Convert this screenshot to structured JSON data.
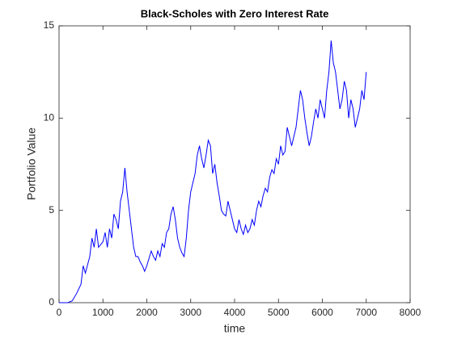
{
  "chart_data": {
    "type": "line",
    "title": "Black-Scholes with Zero Interest Rate",
    "x_label": "time",
    "y_label": "Portfolio Value",
    "xlim": [
      0,
      8000
    ],
    "xticks": [
      0,
      1000,
      2000,
      3000,
      4000,
      5000,
      6000,
      7000,
      8000
    ],
    "ylim": [
      0,
      15
    ],
    "yticks": [
      0,
      5,
      10,
      15
    ],
    "x": [
      0,
      100,
      200,
      300,
      400,
      500,
      550,
      600,
      700,
      750,
      800,
      850,
      900,
      1000,
      1050,
      1100,
      1150,
      1200,
      1250,
      1300,
      1350,
      1400,
      1450,
      1500,
      1550,
      1600,
      1650,
      1700,
      1750,
      1800,
      1850,
      1900,
      1950,
      2000,
      2050,
      2100,
      2150,
      2200,
      2250,
      2300,
      2350,
      2400,
      2450,
      2500,
      2550,
      2600,
      2650,
      2700,
      2750,
      2800,
      2850,
      2900,
      2950,
      3000,
      3050,
      3100,
      3150,
      3200,
      3250,
      3300,
      3350,
      3400,
      3450,
      3500,
      3550,
      3600,
      3650,
      3700,
      3750,
      3800,
      3850,
      3900,
      3950,
      4000,
      4050,
      4100,
      4150,
      4200,
      4250,
      4300,
      4350,
      4400,
      4450,
      4500,
      4550,
      4600,
      4650,
      4700,
      4750,
      4800,
      4850,
      4900,
      4950,
      5000,
      5050,
      5100,
      5150,
      5200,
      5250,
      5300,
      5350,
      5400,
      5450,
      5500,
      5550,
      5600,
      5650,
      5700,
      5750,
      5800,
      5850,
      5900,
      5950,
      6000,
      6050,
      6100,
      6150,
      6200,
      6250,
      6300,
      6350,
      6400,
      6450,
      6500,
      6550,
      6600,
      6650,
      6700,
      6750,
      6800,
      6850,
      6900,
      6950,
      7000
    ],
    "series": [
      {
        "name": "Portfolio Value",
        "color": "#0000ff",
        "values": [
          0,
          0,
          0,
          0.1,
          0.5,
          1.0,
          2.0,
          1.6,
          2.5,
          3.5,
          3.0,
          4.0,
          3.0,
          3.3,
          3.8,
          3.0,
          4.0,
          3.5,
          4.8,
          4.5,
          4.0,
          5.5,
          6.0,
          7.3,
          6.0,
          5.0,
          4.0,
          3.0,
          2.5,
          2.5,
          2.2,
          2.0,
          1.7,
          2.0,
          2.4,
          2.8,
          2.5,
          2.3,
          2.8,
          2.5,
          3.2,
          3.0,
          3.8,
          4.0,
          4.8,
          5.2,
          4.5,
          3.5,
          3.0,
          2.7,
          2.5,
          3.5,
          5.0,
          6.0,
          6.5,
          7.0,
          8.0,
          8.5,
          7.8,
          7.3,
          8.0,
          8.8,
          8.5,
          7.0,
          7.5,
          6.5,
          5.8,
          5.0,
          4.8,
          4.7,
          5.5,
          5.0,
          4.5,
          4.0,
          3.8,
          4.5,
          4.0,
          3.7,
          4.2,
          3.8,
          4.0,
          4.5,
          4.2,
          5.0,
          5.5,
          5.2,
          5.8,
          6.2,
          6.0,
          6.8,
          7.2,
          7.0,
          7.8,
          7.5,
          8.5,
          8.0,
          8.2,
          9.5,
          9.0,
          8.5,
          9.0,
          9.5,
          10.5,
          11.5,
          11.0,
          10.0,
          9.2,
          8.5,
          9.0,
          9.8,
          10.5,
          10.0,
          11.0,
          10.5,
          10.0,
          11.5,
          12.5,
          14.2,
          13.0,
          12.5,
          11.5,
          10.5,
          11.0,
          12.0,
          11.5,
          10.0,
          11.0,
          10.5,
          9.5,
          10.0,
          10.5,
          11.5,
          11.0,
          12.5
        ]
      }
    ]
  }
}
